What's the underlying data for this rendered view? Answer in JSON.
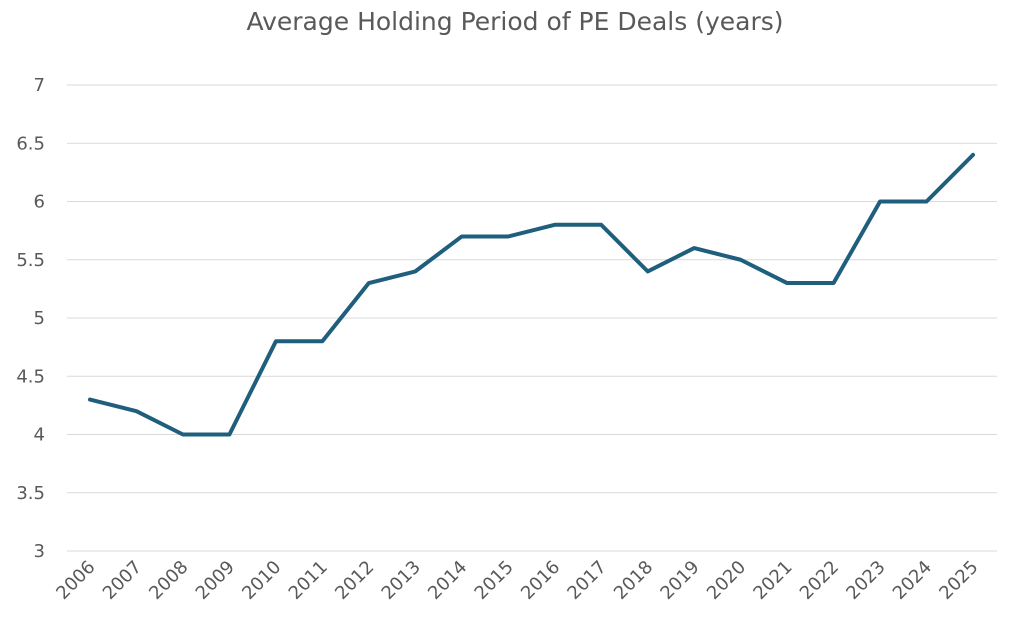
{
  "chart_data": {
    "type": "line",
    "title": "Average Holding Period of PE Deals (years)",
    "xlabel": "",
    "ylabel": "",
    "categories": [
      "2006",
      "2007",
      "2008",
      "2009",
      "2010",
      "2011",
      "2012",
      "2013",
      "2014",
      "2015",
      "2016",
      "2017",
      "2018",
      "2019",
      "2020",
      "2021",
      "2022",
      "2023",
      "2024",
      "2025"
    ],
    "values": [
      4.3,
      4.2,
      4.0,
      4.0,
      4.8,
      4.8,
      5.3,
      5.4,
      5.7,
      5.7,
      5.8,
      5.8,
      5.4,
      5.6,
      5.5,
      5.3,
      5.3,
      6.0,
      6.0,
      6.4
    ],
    "ylim": [
      3,
      7
    ],
    "yticks": [
      "3",
      "3.5",
      "4",
      "4.5",
      "5",
      "5.5",
      "6",
      "6.5",
      "7"
    ],
    "grid": "horizontal",
    "legend": "none",
    "line_color": "#1f5f7d",
    "grid_color": "#d9d9d9"
  }
}
